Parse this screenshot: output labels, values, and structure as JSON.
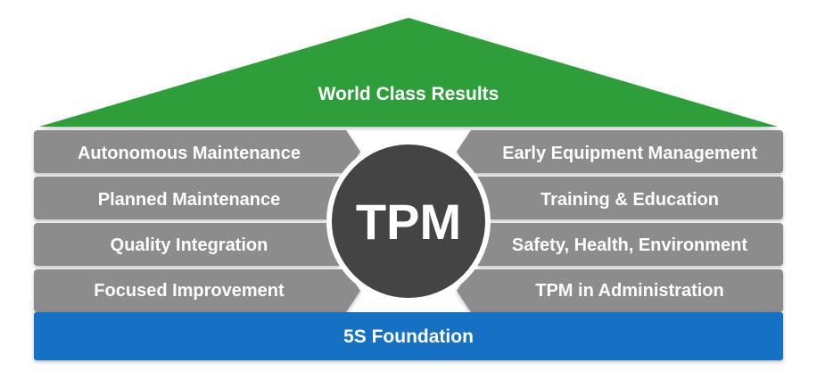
{
  "roof": {
    "label": "World Class Results",
    "color": "#2e9e3a"
  },
  "center": {
    "label": "TPM",
    "color": "#444444"
  },
  "pillars_left": [
    {
      "label": "Autonomous Maintenance"
    },
    {
      "label": "Planned Maintenance"
    },
    {
      "label": "Quality Integration"
    },
    {
      "label": "Focused Improvement"
    }
  ],
  "pillars_right": [
    {
      "label": "Early Equipment Management"
    },
    {
      "label": "Training & Education"
    },
    {
      "label": "Safety, Health, Environment"
    },
    {
      "label": "TPM in Administration"
    }
  ],
  "foundation": {
    "label": "5S Foundation",
    "color": "#1671c4"
  },
  "pillar_color": "#8c8c8c"
}
